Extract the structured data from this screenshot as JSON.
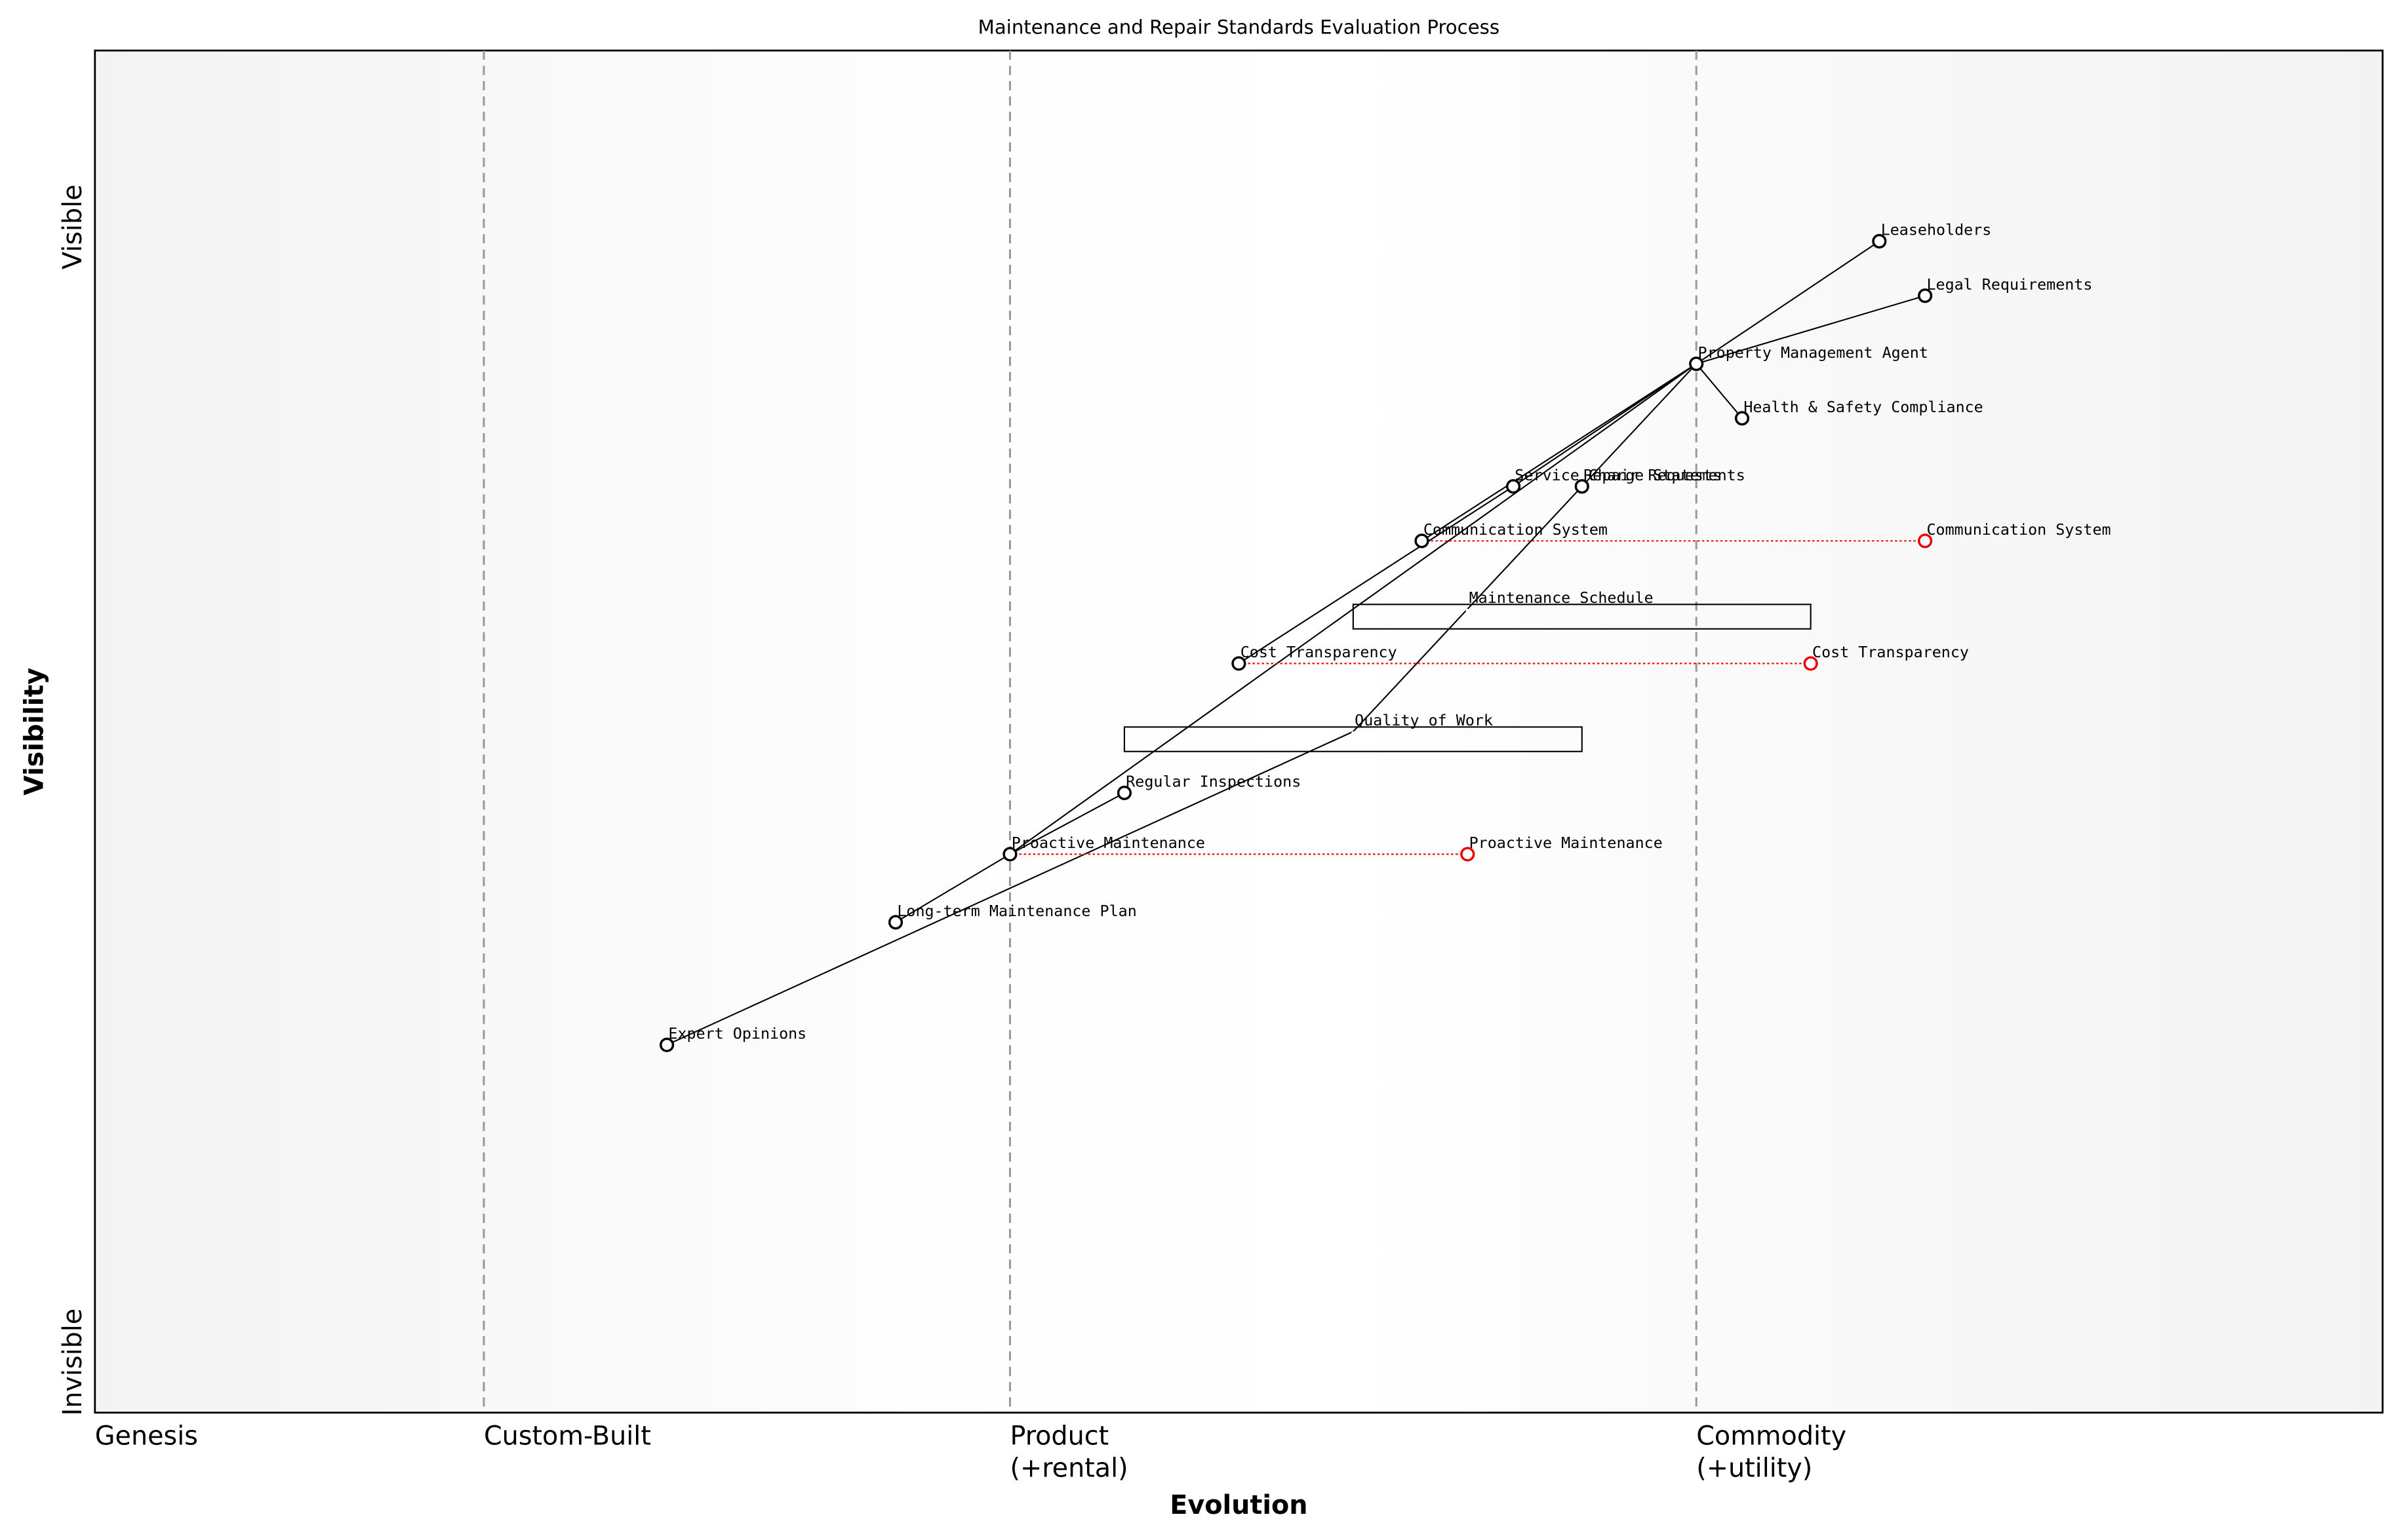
{
  "title": "Maintenance and Repair Standards Evaluation Process",
  "axes": {
    "x_label": "Evolution",
    "y_label": "Visibility",
    "y_top": "Visible",
    "y_bottom": "Invisible"
  },
  "stages": [
    {
      "label": [
        "Genesis"
      ],
      "value": 0
    },
    {
      "label": [
        "Custom-Built"
      ],
      "value": 0.17
    },
    {
      "label": [
        "Product",
        "(+rental)"
      ],
      "value": 0.4
    },
    {
      "label": [
        "Commodity",
        "(+utility)"
      ],
      "value": 0.7
    }
  ],
  "nodes": [
    {
      "name": "Leaseholders",
      "evolution": 0.78,
      "visibility": 0.86
    },
    {
      "name": "Legal Requirements",
      "evolution": 0.8,
      "visibility": 0.82
    },
    {
      "name": "Property Management Agent",
      "evolution": 0.7,
      "visibility": 0.77
    },
    {
      "name": "Health & Safety Compliance",
      "evolution": 0.72,
      "visibility": 0.73
    },
    {
      "name": "Service Charge Statements",
      "evolution": 0.62,
      "visibility": 0.68
    },
    {
      "name": "Repair Requests",
      "evolution": 0.65,
      "visibility": 0.68
    },
    {
      "name": "Communication System",
      "evolution": 0.58,
      "visibility": 0.64
    },
    {
      "name": "Maintenance Schedule",
      "evolution": 0.6,
      "visibility": 0.59,
      "pipeline": [
        0.55,
        0.75
      ]
    },
    {
      "name": "Cost Transparency",
      "evolution": 0.5,
      "visibility": 0.55
    },
    {
      "name": "Quality of Work",
      "evolution": 0.55,
      "visibility": 0.5,
      "pipeline": [
        0.45,
        0.65
      ]
    },
    {
      "name": "Regular Inspections",
      "evolution": 0.45,
      "visibility": 0.455
    },
    {
      "name": "Proactive Maintenance",
      "evolution": 0.4,
      "visibility": 0.41
    },
    {
      "name": "Long-term Maintenance Plan",
      "evolution": 0.35,
      "visibility": 0.36
    },
    {
      "name": "Expert Opinions",
      "evolution": 0.25,
      "visibility": 0.27
    }
  ],
  "links": [
    [
      "Leaseholders",
      "Property Management Agent"
    ],
    [
      "Legal Requirements",
      "Property Management Agent"
    ],
    [
      "Property Management Agent",
      "Health & Safety Compliance"
    ],
    [
      "Property Management Agent",
      "Service Charge Statements"
    ],
    [
      "Property Management Agent",
      "Repair Requests"
    ],
    [
      "Property Management Agent",
      "Communication System"
    ],
    [
      "Property Management Agent",
      "Proactive Maintenance"
    ],
    [
      "Service Charge Statements",
      "Cost Transparency"
    ],
    [
      "Repair Requests",
      "Quality of Work"
    ],
    [
      "Quality of Work",
      "Expert Opinions"
    ],
    [
      "Proactive Maintenance",
      "Regular Inspections"
    ],
    [
      "Proactive Maintenance",
      "Long-term Maintenance Plan"
    ]
  ],
  "evolutions": [
    {
      "name": "Communication System",
      "evolution": 0.8
    },
    {
      "name": "Cost Transparency",
      "evolution": 0.75
    },
    {
      "name": "Proactive Maintenance",
      "evolution": 0.6
    }
  ]
}
